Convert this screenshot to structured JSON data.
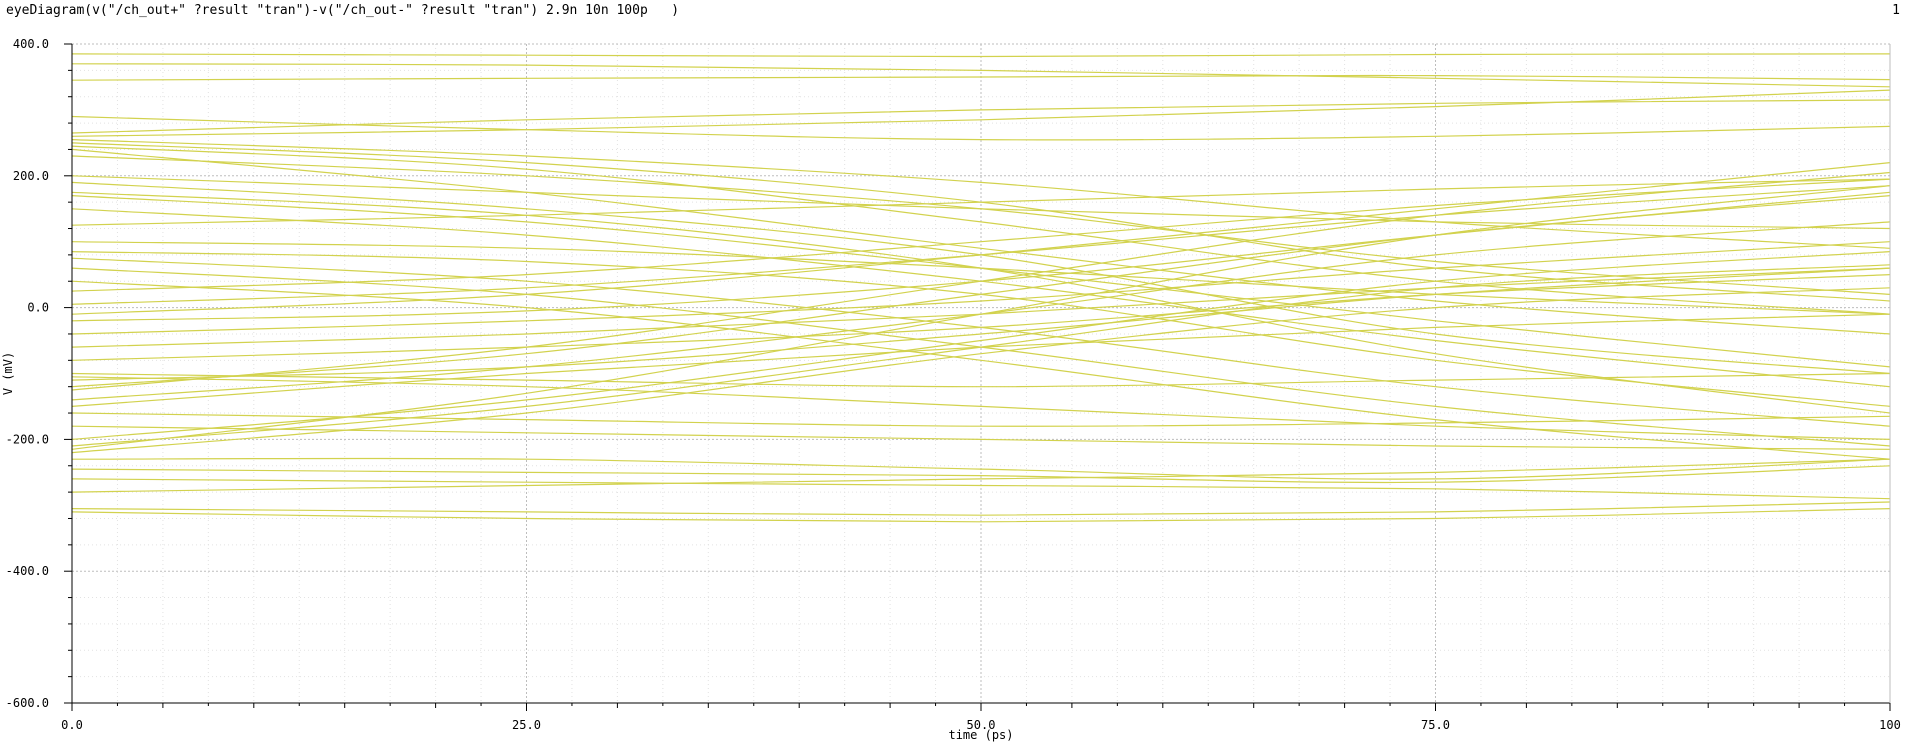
{
  "window": {
    "expression": "eyeDiagram(v(\"/ch_out+\" ?result \"tran\")-v(\"/ch_out-\" ?result \"tran\") 2.9n 10n 100p   )",
    "plot_index": "1"
  },
  "colors": {
    "trace": "#d2d24e",
    "grid_major": "#bdbdbd",
    "grid_minor": "#e2e2e2",
    "axis": "#000000"
  },
  "chart_data": {
    "type": "line",
    "xlabel": "time (ps)",
    "ylabel": "V (mV)",
    "xlim": [
      0,
      100
    ],
    "ylim": [
      -600,
      400
    ],
    "x_ticks": [
      "0.0",
      "25.0",
      "50.0",
      "75.0",
      "100"
    ],
    "y_ticks": [
      "400.0",
      "200.0",
      "0.0",
      "-200.0",
      "-400.0",
      "-600.0"
    ],
    "grid": true,
    "legend": "none",
    "series_style": "eye diagram – overlaid waveform segments (start mV, end mV, sample points every 25 ps)",
    "traces": [
      [
        385,
        383,
        381,
        384,
        385
      ],
      [
        345,
        348,
        350,
        352,
        346
      ],
      [
        370,
        368,
        360,
        348,
        335
      ],
      [
        290,
        270,
        255,
        260,
        275
      ],
      [
        265,
        285,
        300,
        310,
        315
      ],
      [
        260,
        270,
        285,
        305,
        330
      ],
      [
        255,
        230,
        190,
        130,
        90
      ],
      [
        250,
        220,
        160,
        60,
        10
      ],
      [
        245,
        210,
        130,
        40,
        -10
      ],
      [
        240,
        175,
        90,
        10,
        -40
      ],
      [
        230,
        200,
        150,
        70,
        20
      ],
      [
        200,
        175,
        150,
        130,
        120
      ],
      [
        190,
        150,
        80,
        -40,
        -100
      ],
      [
        175,
        140,
        60,
        -70,
        -160
      ],
      [
        170,
        130,
        60,
        -20,
        -90
      ],
      [
        150,
        110,
        40,
        -50,
        -120
      ],
      [
        125,
        140,
        160,
        180,
        195
      ],
      [
        100,
        90,
        60,
        20,
        -10
      ],
      [
        85,
        70,
        20,
        -80,
        -150
      ],
      [
        75,
        40,
        -30,
        -120,
        -180
      ],
      [
        60,
        20,
        -60,
        -150,
        -210
      ],
      [
        40,
        0,
        -80,
        -170,
        -230
      ],
      [
        25,
        50,
        100,
        155,
        195
      ],
      [
        5,
        30,
        80,
        140,
        185
      ],
      [
        -10,
        20,
        80,
        150,
        220
      ],
      [
        -20,
        -5,
        40,
        110,
        175
      ],
      [
        -40,
        -20,
        10,
        60,
        100
      ],
      [
        -60,
        -40,
        -10,
        30,
        60
      ],
      [
        -80,
        -60,
        -30,
        20,
        50
      ],
      [
        -100,
        -110,
        -120,
        -110,
        -100
      ],
      [
        -105,
        -120,
        -150,
        -180,
        -200
      ],
      [
        -110,
        -90,
        -40,
        20,
        60
      ],
      [
        -120,
        -70,
        20,
        110,
        170
      ],
      [
        -125,
        -60,
        40,
        140,
        205
      ],
      [
        -140,
        -90,
        -10,
        80,
        130
      ],
      [
        -150,
        -100,
        -60,
        -30,
        -10
      ],
      [
        -160,
        -170,
        -180,
        -175,
        -165
      ],
      [
        -180,
        -190,
        -200,
        -210,
        -215
      ],
      [
        -200,
        -140,
        -50,
        40,
        85
      ],
      [
        -210,
        -150,
        -60,
        30,
        65
      ],
      [
        -215,
        -130,
        -10,
        110,
        185
      ],
      [
        -220,
        -160,
        -70,
        0,
        30
      ],
      [
        -230,
        -230,
        -245,
        -260,
        -230
      ],
      [
        -245,
        -250,
        -255,
        -265,
        -240
      ],
      [
        -260,
        -265,
        -270,
        -275,
        -290
      ],
      [
        -280,
        -270,
        -260,
        -250,
        -230
      ],
      [
        -305,
        -310,
        -315,
        -310,
        -295
      ],
      [
        -310,
        -320,
        -325,
        -320,
        -305
      ]
    ]
  }
}
